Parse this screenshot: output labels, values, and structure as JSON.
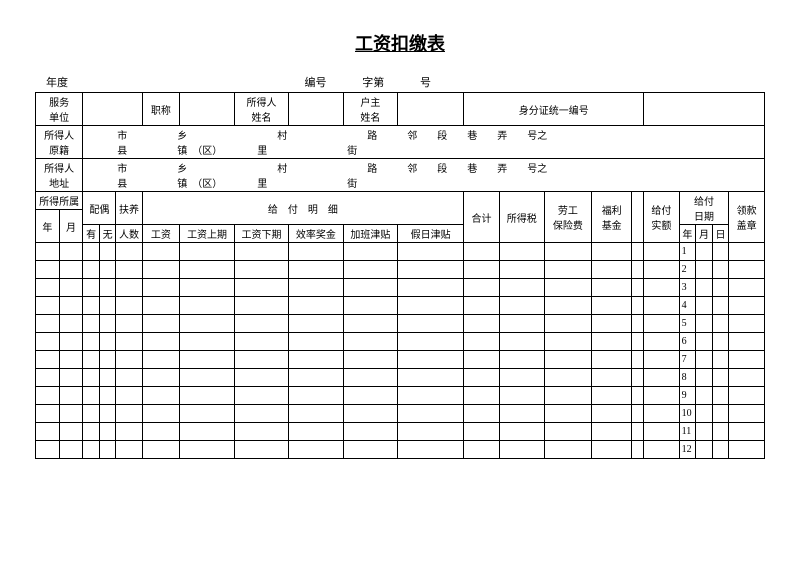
{
  "title": "工资扣缴表",
  "topline": {
    "year_label": "年度",
    "bianhao": "编号",
    "zidi": "字第",
    "hao": "号"
  },
  "row1": {
    "service_unit": "服务\n单位",
    "zhicheng": "职称",
    "suoderen_name": "所得人\n姓名",
    "huzhu_name": "户主\n姓名",
    "id_label": "身分证统一编号"
  },
  "row2": {
    "origin": "所得人\n原籍",
    "addr_tpl": "　　　市　　　　　乡　　　　　　　　　村　　　　　　　　路　　　邻　　段　　巷　　弄　　号之\n　　　县　　　　　镇　（区）　　　　里　　　　　　　　街"
  },
  "row3": {
    "address": "所得人\n地址"
  },
  "header": {
    "suode_suoshu": "所得所属",
    "peiou": "配偶",
    "fuyang": "扶养",
    "geifu_mingxi": "给　付　明　细",
    "year": "年",
    "month": "月",
    "you": "有",
    "wu": "无",
    "renshu": "人数",
    "gongzi": "工资",
    "gzshang": "工资上期",
    "gzxia": "工资下期",
    "xiaolv": "效率奖金",
    "jiaban": "加班津贴",
    "jiari": "假日津贴",
    "heji": "合计",
    "suodeshui": "所得税",
    "laogong": "劳工\n保险费",
    "fuli": "福利\n基金",
    "geifu_shie": "给付\n实额",
    "geifu_riqi": "给付\n日期",
    "ri": "日",
    "lingkuan": "领款\n盖章"
  },
  "months": [
    "1",
    "2",
    "3",
    "4",
    "5",
    "6",
    "7",
    "8",
    "9",
    "10",
    "11",
    "12"
  ]
}
